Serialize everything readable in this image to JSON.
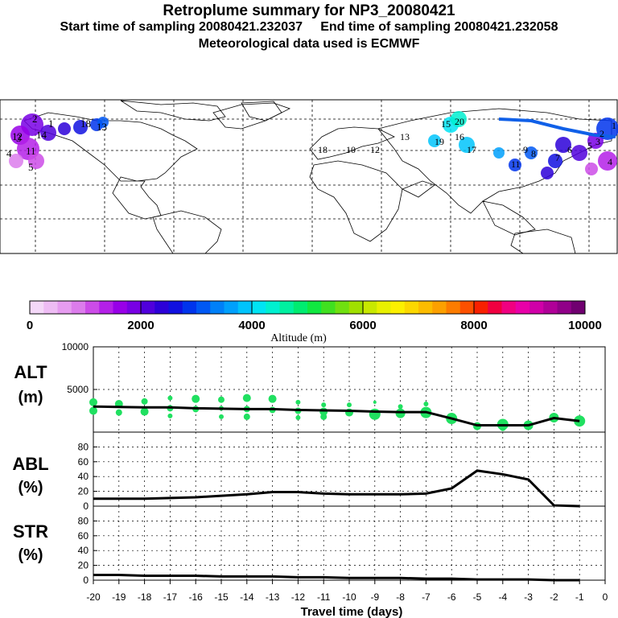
{
  "header": {
    "title": "Retroplume summary for NP3_20080421",
    "line2": "Start time of sampling 20080421.232037     End time of sampling 20080421.232058",
    "line3": "Meteorological data used is ECMWF"
  },
  "colorbar": {
    "tick_labels": [
      "0",
      "2000",
      "4000",
      "6000",
      "8000",
      "10000"
    ],
    "label": "Altitude (m)",
    "colors": [
      "#f4d8f8",
      "#eebcf4",
      "#e69cf0",
      "#dc7cec",
      "#cc4ce8",
      "#b420e8",
      "#9800e8",
      "#7800e4",
      "#5000dc",
      "#2c00d8",
      "#1010e0",
      "#0034ec",
      "#0058f4",
      "#0080f8",
      "#00a0fc",
      "#00c4fc",
      "#00e4f4",
      "#00f0d0",
      "#00f0a0",
      "#00ec70",
      "#10e840",
      "#40e020",
      "#70e010",
      "#a0e000",
      "#c8e800",
      "#e8f000",
      "#fcf000",
      "#fcd800",
      "#fcbc00",
      "#fca000",
      "#fc7c00",
      "#fc5000",
      "#f82000",
      "#f00040",
      "#f00080",
      "#e800a8",
      "#d000a8",
      "#b00098",
      "#900088",
      "#700070"
    ]
  },
  "map": {
    "numbers_pacific_west": [
      "1",
      "2",
      "3",
      "4",
      "5",
      "18",
      "13",
      "12",
      "11",
      "14"
    ],
    "numbers_eurasia": [
      "20",
      "15",
      "16",
      "17",
      "19",
      "13",
      "12",
      "10",
      "9",
      "8",
      "7",
      "6",
      "5",
      "4",
      "3",
      "2",
      "1",
      "11",
      "18"
    ]
  },
  "chart_data": [
    {
      "type": "scatter",
      "panel": "ALT",
      "ylabel_line1": "ALT",
      "ylabel_line2": "(m)",
      "ylim": [
        0,
        10000
      ],
      "ytick_labels": [
        "10000",
        "5000"
      ],
      "xlim": [
        -20,
        0
      ],
      "x": [
        -20,
        -19,
        -18,
        -17,
        -16,
        -15,
        -14,
        -13,
        -12,
        -11,
        -10,
        -9,
        -8,
        -7,
        -6,
        -5,
        -4,
        -3,
        -2,
        -1
      ],
      "line_values": [
        3000,
        2950,
        2900,
        2900,
        2800,
        2750,
        2700,
        2700,
        2600,
        2550,
        2500,
        2400,
        2350,
        2350,
        1600,
        800,
        800,
        800,
        1650,
        1300
      ],
      "points": [
        {
          "x": -20,
          "y": 3500,
          "s": 5
        },
        {
          "x": -20,
          "y": 2500,
          "s": 5
        },
        {
          "x": -19,
          "y": 3300,
          "s": 5
        },
        {
          "x": -19,
          "y": 2300,
          "s": 4
        },
        {
          "x": -18,
          "y": 3600,
          "s": 4
        },
        {
          "x": -18,
          "y": 2400,
          "s": 5
        },
        {
          "x": -17,
          "y": 4000,
          "s": 3
        },
        {
          "x": -17,
          "y": 2800,
          "s": 4
        },
        {
          "x": -17,
          "y": 1900,
          "s": 3
        },
        {
          "x": -16,
          "y": 3900,
          "s": 5
        },
        {
          "x": -16,
          "y": 2700,
          "s": 4
        },
        {
          "x": -15,
          "y": 3800,
          "s": 4
        },
        {
          "x": -15,
          "y": 2800,
          "s": 3
        },
        {
          "x": -15,
          "y": 1800,
          "s": 3
        },
        {
          "x": -14,
          "y": 4000,
          "s": 5
        },
        {
          "x": -14,
          "y": 2700,
          "s": 4
        },
        {
          "x": -14,
          "y": 1800,
          "s": 4
        },
        {
          "x": -13,
          "y": 3900,
          "s": 5
        },
        {
          "x": -13,
          "y": 2600,
          "s": 4
        },
        {
          "x": -12,
          "y": 3500,
          "s": 3
        },
        {
          "x": -12,
          "y": 2500,
          "s": 4
        },
        {
          "x": -12,
          "y": 1700,
          "s": 3
        },
        {
          "x": -11,
          "y": 3200,
          "s": 3
        },
        {
          "x": -11,
          "y": 2400,
          "s": 5
        },
        {
          "x": -11,
          "y": 1800,
          "s": 4
        },
        {
          "x": -10,
          "y": 3200,
          "s": 3
        },
        {
          "x": -10,
          "y": 2300,
          "s": 5
        },
        {
          "x": -9,
          "y": 3500,
          "s": 2
        },
        {
          "x": -9,
          "y": 2100,
          "s": 7
        },
        {
          "x": -8,
          "y": 3000,
          "s": 3
        },
        {
          "x": -8,
          "y": 2200,
          "s": 6
        },
        {
          "x": -7,
          "y": 3300,
          "s": 3
        },
        {
          "x": -7,
          "y": 2300,
          "s": 7
        },
        {
          "x": -6,
          "y": 1600,
          "s": 7
        },
        {
          "x": -5,
          "y": 700,
          "s": 5
        },
        {
          "x": -4,
          "y": 900,
          "s": 7
        },
        {
          "x": -4,
          "y": 500,
          "s": 4
        },
        {
          "x": -3,
          "y": 800,
          "s": 6
        },
        {
          "x": -2,
          "y": 1700,
          "s": 6
        },
        {
          "x": -1,
          "y": 1300,
          "s": 7
        }
      ],
      "point_color": "#20e060"
    },
    {
      "type": "line",
      "panel": "ABL",
      "ylabel_line1": "ABL",
      "ylabel_line2": "(%)",
      "ylim": [
        0,
        100
      ],
      "ytick_labels": [
        "80",
        "60",
        "40",
        "20",
        "0"
      ],
      "x": [
        -20,
        -19,
        -18,
        -17,
        -16,
        -15,
        -14,
        -13,
        -12,
        -11,
        -10,
        -9,
        -8,
        -7,
        -6,
        -5,
        -4,
        -3,
        -2,
        -1
      ],
      "values": [
        10,
        10,
        10,
        11,
        12,
        14,
        16,
        19,
        19,
        17,
        16,
        16,
        16,
        17,
        24,
        48,
        43,
        36,
        1,
        0
      ]
    },
    {
      "type": "line",
      "panel": "STR",
      "ylabel_line1": "STR",
      "ylabel_line2": "(%)",
      "ylim": [
        0,
        100
      ],
      "ytick_labels": [
        "80",
        "60",
        "40",
        "20",
        "0"
      ],
      "x": [
        -20,
        -19,
        -18,
        -17,
        -16,
        -15,
        -14,
        -13,
        -12,
        -11,
        -10,
        -9,
        -8,
        -7,
        -6,
        -5,
        -4,
        -3,
        -2,
        -1
      ],
      "values": [
        7,
        7,
        6,
        6,
        6,
        5,
        5,
        5,
        4,
        4,
        3,
        3,
        3,
        2,
        2,
        1,
        1,
        1,
        0,
        0
      ]
    }
  ],
  "xaxis": {
    "tick_labels": [
      "-20",
      "-19",
      "-18",
      "-17",
      "-16",
      "-15",
      "-14",
      "-13",
      "-12",
      "-11",
      "-10",
      "-9",
      "-8",
      "-7",
      "-6",
      "-5",
      "-4",
      "-3",
      "-2",
      "-1",
      "0"
    ],
    "label": "Travel time (days)"
  }
}
